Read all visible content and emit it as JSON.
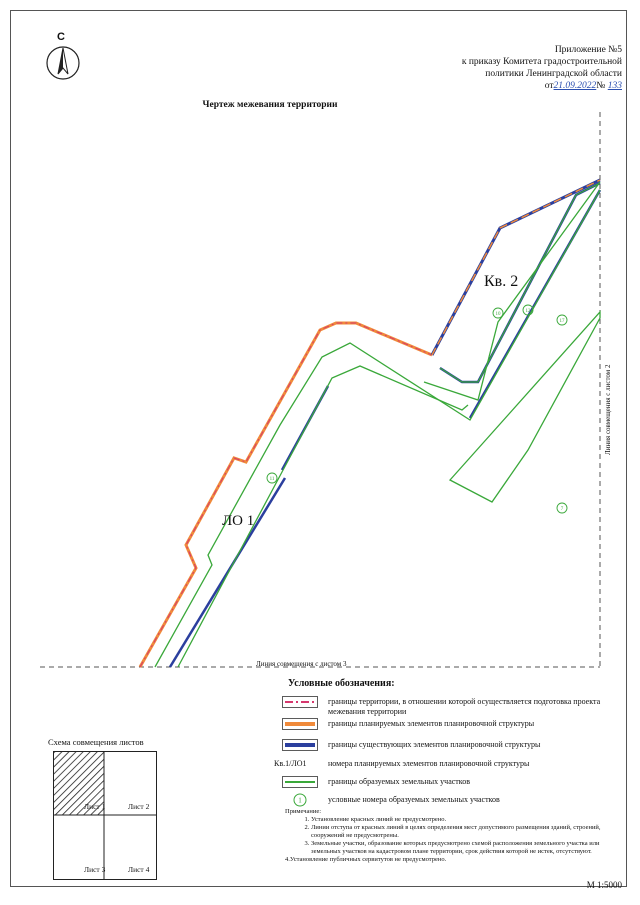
{
  "appendix": {
    "line1": "Приложение №5",
    "line2": "к приказу Комитета градостроительной",
    "line3": "политики Ленинградской области",
    "date_prefix": "от",
    "date_value": "21.09.2022",
    "number_prefix": "№",
    "number_value": "133"
  },
  "north_label": "С",
  "title": "Чертеж межевания территории",
  "map": {
    "block_label": "Кв. 2",
    "zone_label": "ЛО 1",
    "join_line_sheet3": "Линия совмещения с листом 3",
    "join_line_sheet2": "Линия совмещения с листом 2",
    "parcel_numbers": [
      "10",
      "12",
      "17",
      "11",
      "7"
    ]
  },
  "legend": {
    "title": "Условные обозначения:",
    "items": [
      {
        "symbol": "territory-boundary",
        "text": "границы территории, в отношении которой осуществляется подготовка проекта межевания территории"
      },
      {
        "symbol": "planned-elements",
        "text": "границы планируемых элементов планировочной структуры"
      },
      {
        "symbol": "existing-elements",
        "text": "границы существующих элементов планировочной структуры"
      },
      {
        "symbol": "text",
        "symbol_text": "Кв.1/ЛО1",
        "text": "номера планируемых элементов планировочной структуры"
      },
      {
        "symbol": "parcels",
        "text": "границы образуемых земельных участков"
      },
      {
        "symbol": "circle",
        "symbol_text": "1",
        "text": "условные номера образуемых земельных участков"
      }
    ],
    "colors": {
      "territory": "#d6386e",
      "planned": "#f08a3a",
      "existing": "#2b3f9e",
      "parcel": "#3aa83a"
    }
  },
  "notes": {
    "heading": "Примечание:",
    "items": [
      "Установление красных линий не предусмотрено.",
      "Линии отступа от красных линий в целях определения мест допустимого размещения зданий, строений, сооружений не предусмотрены.",
      "Земельные участки, образование которых предусмотрено схемой расположения земельного участка или земельных участков на кадастровом плане территории, срок действия которой не истек, отсутствуют."
    ],
    "item4": "4.Установление публичных сервитутов не предусмотрено."
  },
  "schema": {
    "title": "Схема совмещения листов",
    "sheets": [
      "Лист 1",
      "Лист 2",
      "Лист 3",
      "Лист 4"
    ]
  },
  "scale": "М 1:5000"
}
